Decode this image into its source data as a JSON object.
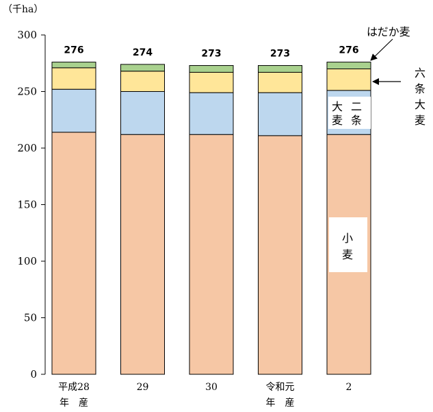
{
  "chart_data": {
    "type": "bar",
    "stacked": true,
    "unit_label": "（千ha）",
    "categories": [
      [
        "平成28",
        "年　産"
      ],
      [
        "29"
      ],
      [
        "30"
      ],
      [
        "令和元",
        "年　産"
      ],
      [
        "2"
      ]
    ],
    "totals": [
      "276",
      "274",
      "273",
      "273",
      "276"
    ],
    "ylim": [
      0,
      300
    ],
    "yticks": [
      0,
      50,
      100,
      150,
      200,
      250,
      300
    ],
    "grid": false,
    "series": [
      {
        "name": "小麦",
        "color": "#f6c7a5",
        "values": [
          214,
          212,
          212,
          211,
          212
        ]
      },
      {
        "name": "二条大麦",
        "color": "#bdd7ee",
        "values": [
          38,
          38,
          37,
          38,
          39
        ]
      },
      {
        "name": "六条大麦",
        "color": "#ffe699",
        "values": [
          19,
          18,
          18,
          18,
          19
        ]
      },
      {
        "name": "はだか麦",
        "color": "#a9d18e",
        "values": [
          5,
          6,
          6,
          6,
          6
        ]
      }
    ],
    "labels": {
      "hadaka": "はだか麦",
      "rokujo": [
        "六",
        "条",
        "大",
        "麦"
      ],
      "nijo": [
        "大",
        "二",
        "麦",
        "条"
      ],
      "komugi": [
        "小",
        "麦"
      ]
    }
  }
}
